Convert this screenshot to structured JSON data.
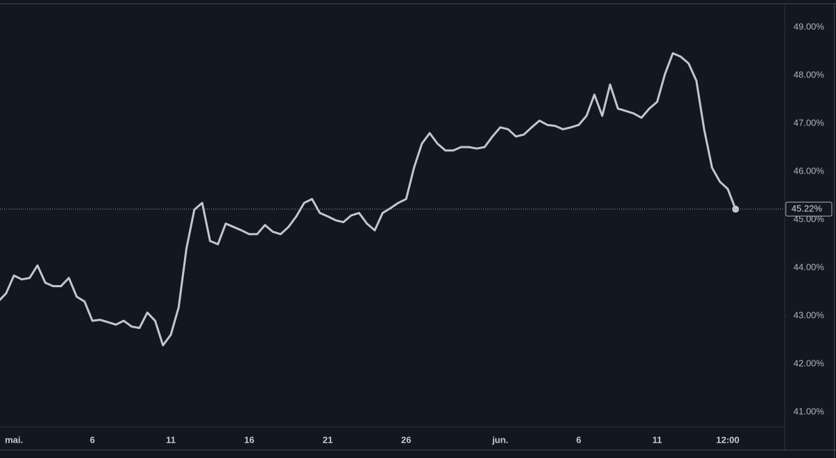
{
  "chart_data": {
    "type": "line",
    "categories": [
      null,
      null,
      "mai.",
      null,
      null,
      null,
      null,
      null,
      null,
      null,
      null,
      null,
      "6",
      null,
      null,
      null,
      null,
      null,
      null,
      null,
      null,
      null,
      "11",
      null,
      null,
      null,
      null,
      null,
      null,
      null,
      null,
      null,
      "16",
      null,
      null,
      null,
      null,
      null,
      null,
      null,
      null,
      null,
      "21",
      null,
      null,
      null,
      null,
      null,
      null,
      null,
      null,
      null,
      "26",
      null,
      null,
      null,
      null,
      null,
      null,
      null,
      null,
      null,
      null,
      null,
      "jun.",
      null,
      null,
      null,
      null,
      null,
      null,
      null,
      null,
      null,
      "6",
      null,
      null,
      null,
      null,
      null,
      null,
      null,
      null,
      null,
      "11",
      null,
      null,
      null,
      null,
      null,
      null,
      null,
      null,
      "12:00",
      null
    ],
    "values": [
      43.3,
      43.47,
      43.84,
      43.76,
      43.79,
      44.05,
      43.69,
      43.62,
      43.62,
      43.79,
      43.4,
      43.3,
      42.9,
      42.92,
      42.87,
      42.82,
      42.9,
      42.78,
      42.75,
      43.07,
      42.9,
      42.39,
      42.61,
      43.18,
      44.41,
      45.21,
      45.35,
      44.56,
      44.49,
      44.92,
      44.85,
      44.78,
      44.7,
      44.7,
      44.89,
      44.75,
      44.7,
      44.85,
      45.07,
      45.35,
      45.43,
      45.14,
      45.07,
      44.99,
      44.95,
      45.09,
      45.14,
      44.92,
      44.78,
      45.14,
      45.24,
      45.35,
      45.43,
      46.08,
      46.58,
      46.8,
      46.58,
      46.44,
      46.44,
      46.51,
      46.51,
      46.48,
      46.51,
      46.73,
      46.92,
      46.88,
      46.73,
      46.77,
      46.92,
      47.06,
      46.97,
      46.95,
      46.88,
      46.92,
      46.97,
      47.16,
      47.6,
      47.16,
      47.81,
      47.31,
      47.26,
      47.21,
      47.12,
      47.31,
      47.45,
      48.03,
      48.46,
      48.39,
      48.25,
      47.89,
      46.87,
      46.08,
      45.79,
      45.64,
      45.22
    ],
    "color": "#c4c6cf",
    "ylim": [
      40.7,
      49.48
    ],
    "yticks": [
      {
        "value": 41,
        "label": "41.00%"
      },
      {
        "value": 42,
        "label": "42.00%"
      },
      {
        "value": 43,
        "label": "43.00%"
      },
      {
        "value": 44,
        "label": "44.00%"
      },
      {
        "value": 45,
        "label": "45.00%"
      },
      {
        "value": 46,
        "label": "46.00%"
      },
      {
        "value": 47,
        "label": "47.00%"
      },
      {
        "value": 48,
        "label": "48.00%"
      },
      {
        "value": 49,
        "label": "49.00%"
      }
    ],
    "current_value": {
      "value": 45.22,
      "label": "45.22%"
    },
    "grid": false
  }
}
